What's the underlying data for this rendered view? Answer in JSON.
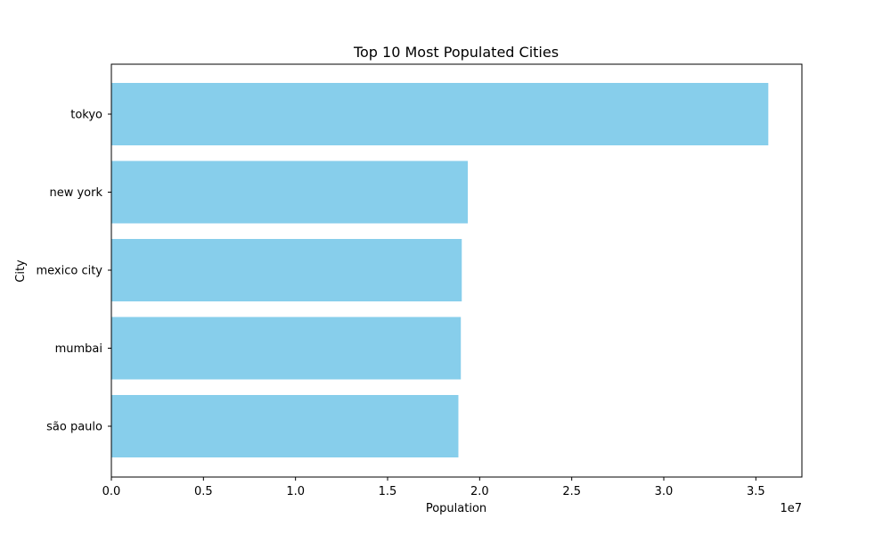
{
  "chart_data": {
    "type": "bar",
    "orientation": "horizontal",
    "title": "Top 10 Most Populated Cities",
    "xlabel": "Population",
    "ylabel": "City",
    "categories": [
      "tokyo",
      "new york",
      "mexico city",
      "mumbai",
      "são paulo"
    ],
    "values": [
      35676000,
      19354922,
      19028000,
      18978000,
      18845000
    ],
    "xlim": [
      0,
      37500000
    ],
    "xticks": [
      0,
      5000000,
      10000000,
      15000000,
      20000000,
      25000000,
      30000000,
      35000000
    ],
    "xtick_labels": [
      "0.0",
      "0.5",
      "1.0",
      "1.5",
      "2.0",
      "2.5",
      "3.0",
      "3.5"
    ],
    "x_offset_label": "1e7",
    "grid": false,
    "bar_color": "#87CEEB"
  }
}
